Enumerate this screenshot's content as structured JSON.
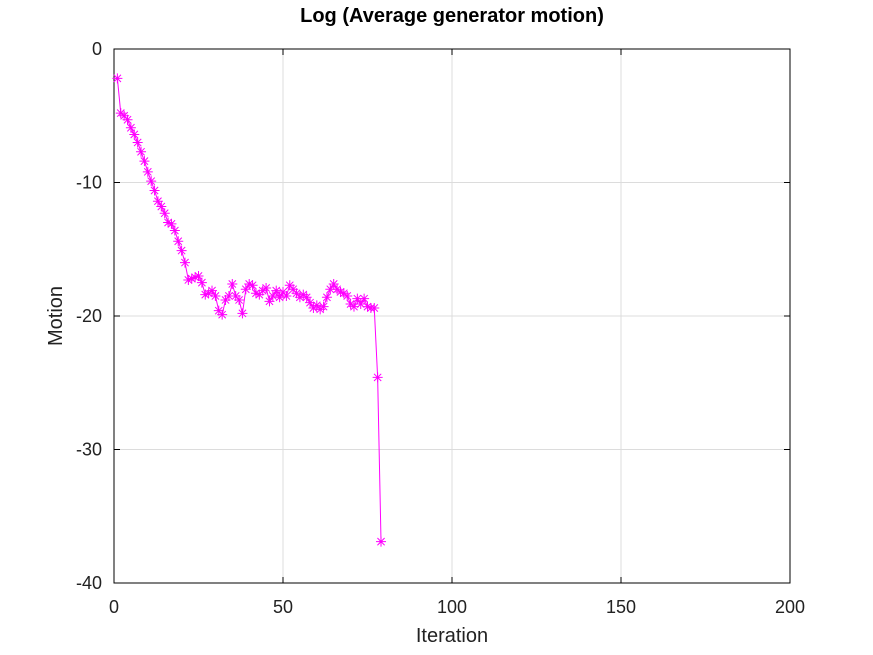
{
  "chart_data": {
    "type": "line",
    "title": "Log (Average generator motion)",
    "xlabel": "Iteration",
    "ylabel": "Motion",
    "xlim": [
      0,
      200
    ],
    "ylim": [
      -40,
      0
    ],
    "xticks": [
      0,
      50,
      100,
      150,
      200
    ],
    "yticks": [
      0,
      -10,
      -20,
      -30,
      -40
    ],
    "grid": true,
    "legend": "none",
    "series": [
      {
        "color": "#ff00ff",
        "marker": "asterisk",
        "x": [
          1,
          2,
          3,
          4,
          5,
          6,
          7,
          8,
          9,
          10,
          11,
          12,
          13,
          14,
          15,
          16,
          17,
          18,
          19,
          20,
          21,
          22,
          23,
          24,
          25,
          26,
          27,
          28,
          29,
          30,
          31,
          32,
          33,
          34,
          35,
          36,
          37,
          38,
          39,
          40,
          41,
          42,
          43,
          44,
          45,
          46,
          47,
          48,
          49,
          50,
          51,
          52,
          53,
          54,
          55,
          56,
          57,
          58,
          59,
          60,
          61,
          62,
          63,
          64,
          65,
          66,
          67,
          68,
          69,
          70,
          71,
          72,
          73,
          74,
          75,
          76,
          77,
          78,
          79
        ],
        "y": [
          -2.2,
          -4.8,
          -5.0,
          -5.3,
          -5.9,
          -6.4,
          -7.0,
          -7.7,
          -8.4,
          -9.2,
          -9.9,
          -10.6,
          -11.4,
          -11.8,
          -12.3,
          -13.0,
          -13.1,
          -13.6,
          -14.4,
          -15.1,
          -16.0,
          -17.3,
          -17.2,
          -17.1,
          -17.0,
          -17.5,
          -18.4,
          -18.3,
          -18.1,
          -18.5,
          -19.6,
          -19.9,
          -18.8,
          -18.5,
          -17.6,
          -18.5,
          -18.8,
          -19.8,
          -18.0,
          -17.6,
          -17.7,
          -18.3,
          -18.4,
          -18.1,
          -17.9,
          -18.9,
          -18.5,
          -18.1,
          -18.6,
          -18.2,
          -18.5,
          -17.7,
          -18.0,
          -18.3,
          -18.6,
          -18.4,
          -18.6,
          -19.0,
          -19.4,
          -19.2,
          -19.5,
          -19.3,
          -18.6,
          -18.0,
          -17.6,
          -18.0,
          -18.2,
          -18.3,
          -18.5,
          -19.1,
          -19.3,
          -18.7,
          -19.1,
          -18.7,
          -19.3,
          -19.4,
          -19.4,
          -24.6,
          -36.9
        ]
      }
    ]
  }
}
